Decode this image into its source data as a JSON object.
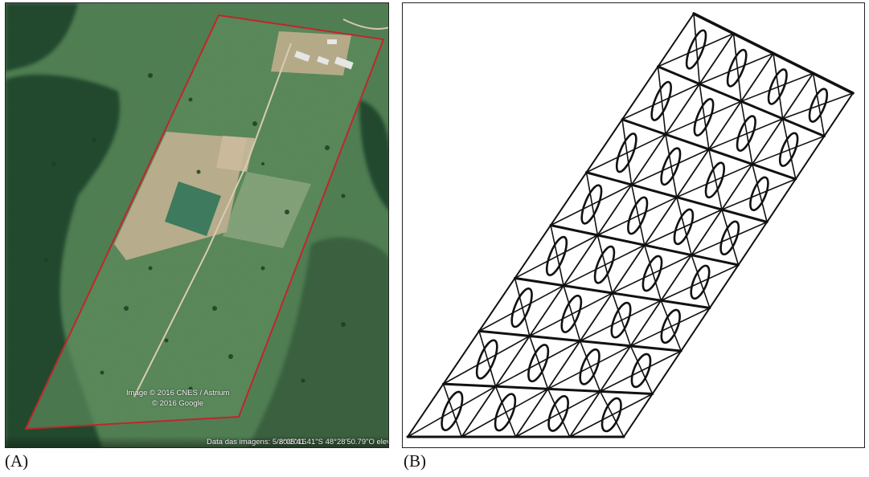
{
  "panels": {
    "a": {
      "label": "(A)",
      "attribution_line1": "Image © 2016 CNES / Astrium",
      "attribution_line2": "© 2016 Google",
      "imagery_date": "Data das imagens: 5/20/2016",
      "coordinates": "8°05'41.41\"S  48°28'50.79\"O  elev"
    },
    "b": {
      "label": "(B)"
    }
  },
  "colors": {
    "boundary": "#c0262b",
    "pasture": "#4d7d4f",
    "forest": "#2b5236",
    "bare_soil": "#c9b495",
    "grid_line": "#111111"
  }
}
